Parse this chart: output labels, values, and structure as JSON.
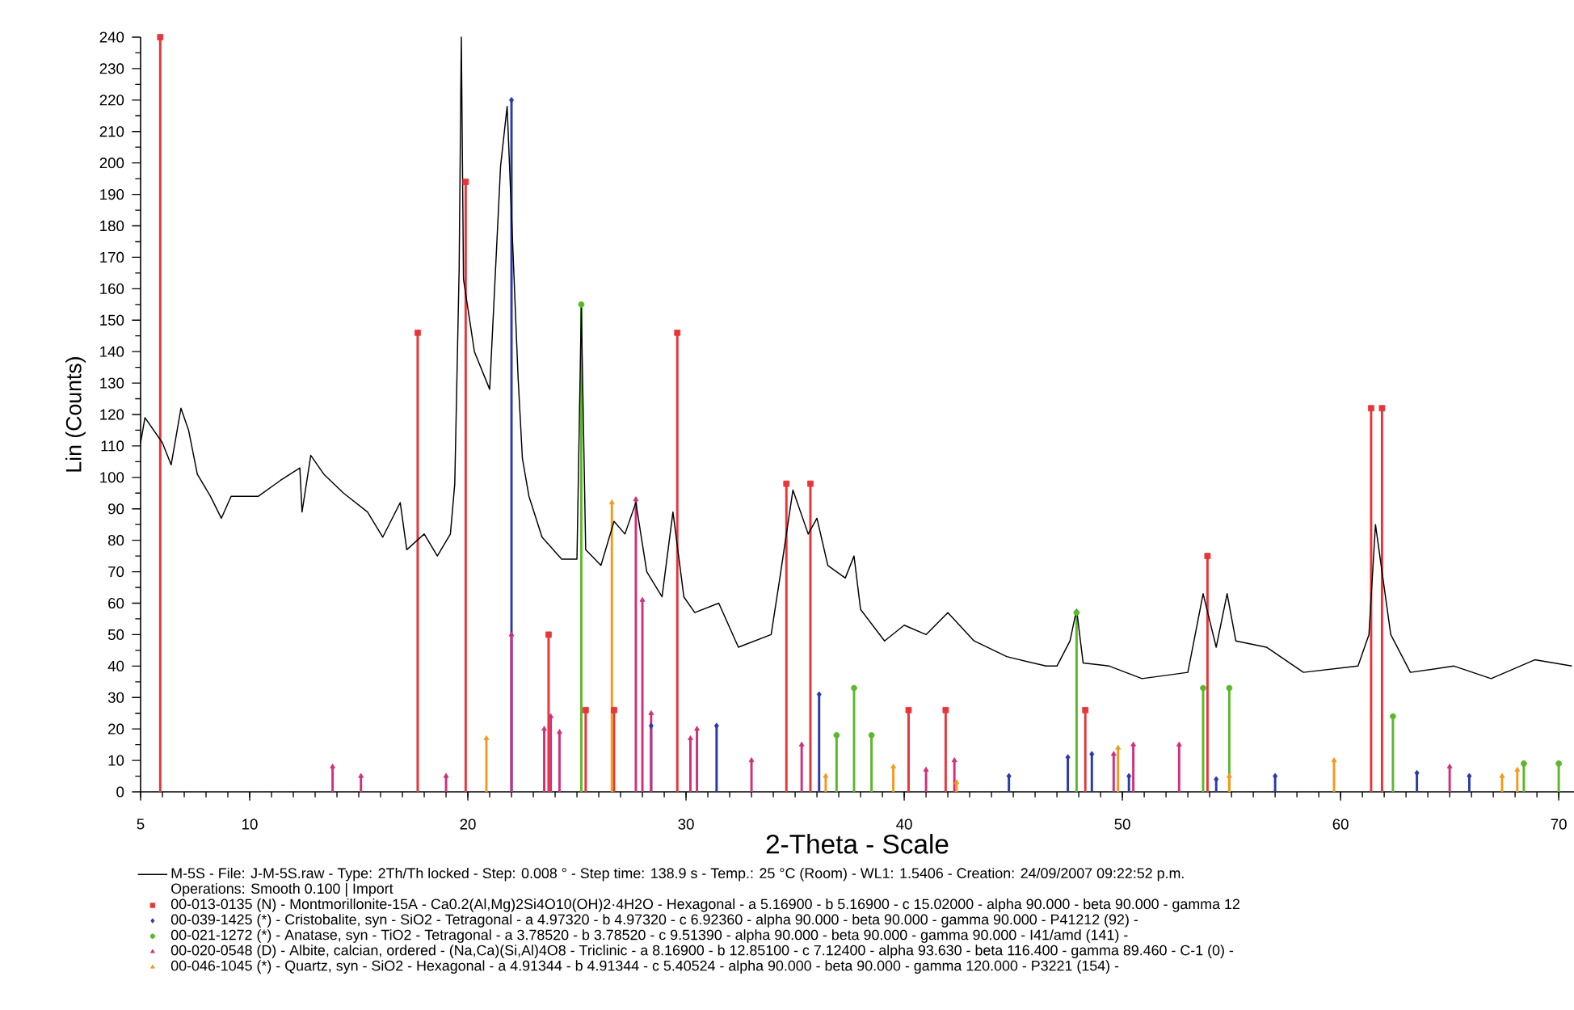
{
  "chart_data": {
    "type": "line",
    "xlabel": "2-Theta - Scale",
    "ylabel": "Lin (Counts)",
    "xlim": [
      5,
      70.7
    ],
    "ylim": [
      0,
      240
    ],
    "xticks": [
      5,
      10,
      20,
      30,
      40,
      50,
      60,
      70
    ],
    "yticks": [
      0,
      10,
      20,
      30,
      40,
      50,
      60,
      70,
      80,
      90,
      100,
      110,
      120,
      130,
      140,
      150,
      160,
      170,
      180,
      190,
      200,
      210,
      220,
      230,
      240
    ],
    "legend": "bottom",
    "grid": false,
    "annotations": [
      "Operations: Smooth 0.100 | Import"
    ],
    "series": [
      {
        "name": "M-5S - File: J-M-5S.raw - Type: 2Th/Th locked - Step: 0.008 ° - Step time: 138.9 s - Temp.: 25 °C (Room) - WL1: 1.5406 - Creation: 24/09/2007 09:22:52 p.m.",
        "color": "#000000",
        "x": [
          5,
          5.2,
          6.0,
          6.4,
          6.85,
          7.2,
          7.6,
          8.2,
          8.7,
          9.15,
          10.4,
          11.4,
          12.3,
          12.4,
          12.8,
          13.4,
          14.3,
          15.4,
          16.1,
          16.9,
          17.2,
          18.0,
          18.6,
          19.2,
          19.4,
          19.6,
          19.7,
          19.8,
          20.3,
          21.0,
          21.5,
          21.8,
          22.3,
          22.5,
          22.8,
          23.4,
          24.3,
          25.0,
          25.2,
          25.4,
          26.1,
          26.7,
          27.2,
          27.7,
          28.2,
          28.9,
          29.4,
          29.9,
          30.4,
          31.5,
          32.4,
          33.9,
          34.3,
          34.9,
          35.6,
          36.0,
          36.5,
          37.3,
          37.7,
          38.0,
          39.1,
          40.0,
          41.0,
          42.0,
          43.2,
          44.7,
          46.5,
          47.0,
          47.6,
          47.9,
          48.2,
          49.4,
          50.9,
          53.0,
          53.7,
          54.3,
          54.8,
          55.2,
          56.6,
          58.3,
          60.8,
          61.3,
          61.6,
          62.3,
          63.2,
          65.2,
          66.9,
          68.9,
          70.6
        ],
        "values": [
          111,
          119,
          111,
          104,
          122,
          115,
          101,
          94,
          87,
          94,
          94,
          99,
          103,
          89,
          107,
          101,
          95,
          89,
          81,
          92,
          77,
          82,
          75,
          82,
          98,
          166,
          240,
          163,
          140,
          128,
          199,
          218,
          132,
          106,
          94,
          81,
          74,
          74,
          154,
          77,
          72,
          86,
          82,
          92,
          70,
          62,
          89,
          62,
          57,
          60,
          46,
          50,
          68,
          96,
          82,
          87,
          72,
          68,
          75,
          58,
          48,
          53,
          50,
          57,
          48,
          43,
          40,
          40,
          48,
          58,
          41,
          40,
          36,
          38,
          63,
          46,
          63,
          48,
          46,
          38,
          40,
          50,
          85,
          50,
          38,
          40,
          36,
          42,
          40
        ]
      },
      {
        "name": "00-013-0135 (N) - Montmorillonite-15A - Ca0.2(Al,Mg)2Si4O10(OH)2·4H2O - Hexagonal - a 5.16900 - b 5.16900 - c 15.02000 - alpha 90.000 - beta 90.000 - gamma 12",
        "type": "lollipop",
        "marker": "square",
        "color": "#e8353a",
        "x": [
          5.9,
          17.7,
          19.9,
          23.7,
          25.4,
          26.7,
          29.6,
          34.6,
          35.7,
          40.2,
          41.9,
          48.3,
          53.9,
          61.4,
          61.9
        ],
        "values": [
          240,
          146,
          194,
          50,
          26,
          26,
          146,
          98,
          98,
          26,
          26,
          26,
          75,
          122,
          122
        ]
      },
      {
        "name": "00-039-1425 (*) - Cristobalite, syn - SiO2 - Tetragonal - a 4.97320 - b 4.97320 - c 6.92360 - alpha 90.000 - beta 90.000 - gamma 90.000 - P41212 (92) -",
        "type": "lollipop",
        "marker": "diamond",
        "color": "#2a3aa8",
        "x": [
          22.0,
          28.4,
          31.4,
          36.1,
          44.8,
          47.5,
          48.6,
          50.3,
          54.3,
          57.0,
          63.5,
          65.9
        ],
        "values": [
          220,
          21,
          21,
          31,
          5,
          11,
          12,
          5,
          4,
          5,
          6,
          5
        ]
      },
      {
        "name": "00-021-1272 (*) - Anatase, syn - TiO2 - Tetragonal - a 3.78520 - b 3.78520 - c 9.51390 - alpha 90.000 - beta 90.000 - gamma 90.000 - I41/amd (141) -",
        "type": "lollipop",
        "marker": "circle",
        "color": "#5cb82a",
        "x": [
          25.2,
          36.9,
          37.7,
          38.5,
          47.9,
          53.7,
          54.9,
          62.4,
          68.4,
          70.0
        ],
        "values": [
          155,
          18,
          33,
          18,
          57,
          33,
          33,
          24,
          9,
          9
        ]
      },
      {
        "name": "00-020-0548 (D) - Albite, calcian, ordered - (Na,Ca)(Si,Al)4O8 - Triclinic - a 8.16900 - b 12.85100 - c 7.12400 - alpha 93.630 - beta 116.400 - gamma 89.460 - C-1 (0) -",
        "type": "lollipop",
        "marker": "triangle",
        "color": "#d0307a",
        "x": [
          13.8,
          15.1,
          19.0,
          22.0,
          23.5,
          23.8,
          24.2,
          27.7,
          28.0,
          28.4,
          30.2,
          30.5,
          33.0,
          35.3,
          41.0,
          42.3,
          49.6,
          50.5,
          52.6,
          65.0
        ],
        "values": [
          8,
          5,
          5,
          50,
          20,
          24,
          19,
          93,
          61,
          25,
          17,
          20,
          10,
          15,
          7,
          10,
          12,
          15,
          15,
          8
        ]
      },
      {
        "name": "00-046-1045 (*) - Quartz, syn - SiO2 - Hexagonal - a 4.91344 - b 4.91344 - c 5.40524 - alpha 90.000 - beta 90.000 - gamma 120.000 - P3221 (154) -",
        "type": "lollipop",
        "marker": "triangle",
        "color": "#f39a1e",
        "x": [
          20.85,
          26.6,
          36.4,
          39.5,
          42.4,
          49.8,
          54.9,
          59.7,
          67.4,
          68.1
        ],
        "values": [
          17,
          92,
          5,
          8,
          3,
          14,
          5,
          10,
          5,
          7
        ]
      }
    ]
  }
}
